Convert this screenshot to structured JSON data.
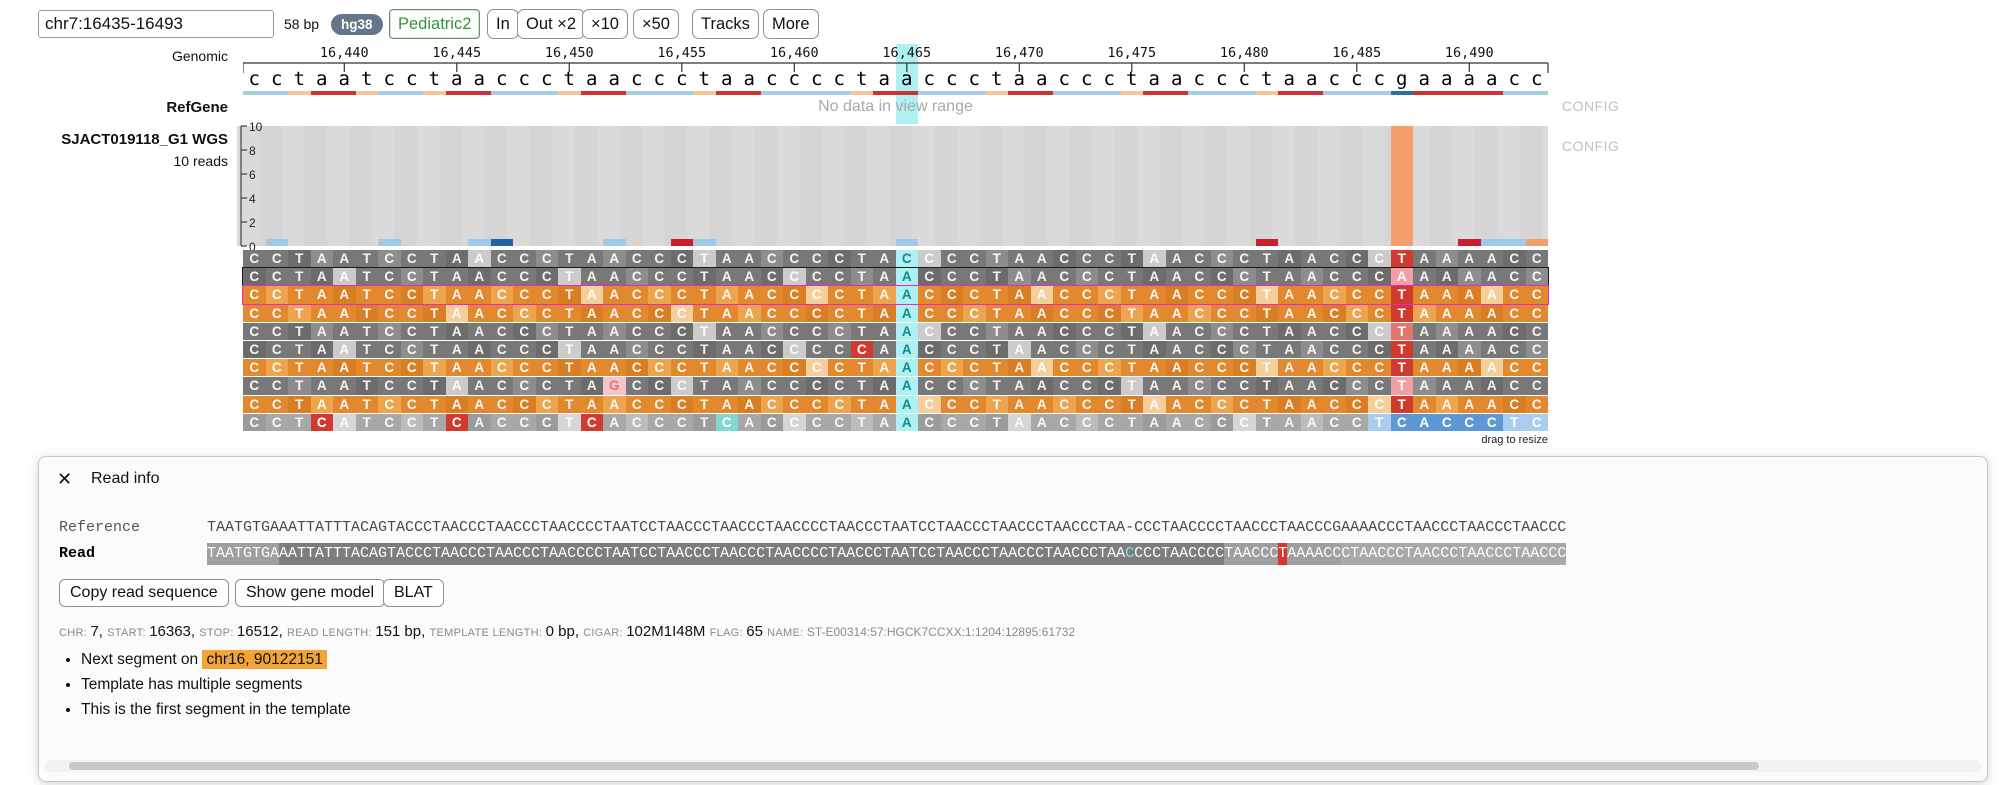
{
  "toolbar": {
    "position_input": "chr7:16435-16493",
    "span_label": "58 bp",
    "genome_badge": "hg38",
    "dataset_button": "Pediatric2",
    "zoom_in": "In",
    "zoom_out_2": "Out ×2",
    "zoom_out_10": "×10",
    "zoom_out_50": "×50",
    "tracks_button": "Tracks",
    "more_button": "More"
  },
  "ruler": {
    "track_label": "Genomic",
    "tick_labels": [
      "16,440",
      "16,445",
      "16,450",
      "16,455",
      "16,460",
      "16,465",
      "16,470",
      "16,475",
      "16,480",
      "16,485",
      "16,490"
    ],
    "start_coord": 16436
  },
  "reference": {
    "sequence": "cctaatcctaaccctaaccctaacccctaaccctaaccctaaccctaacccgaaaacc",
    "highlight_index": 29,
    "base_colors": {
      "a": "#cb3335",
      "c": "#a6cee3",
      "t": "#f8c49a",
      "g": "#2f6da4"
    },
    "highlight_color": "#aff0f2"
  },
  "refgene": {
    "track_label": "RefGene",
    "message": "No data in view range",
    "config_label": "CONFIG"
  },
  "bam": {
    "track_label": "SJACT019118_G1 WGS",
    "reads_label": "10 reads",
    "config_label": "CONFIG",
    "drag_label": "drag to resize",
    "y_ticks": [
      10,
      8,
      6,
      4,
      2,
      0
    ],
    "insertion_column": 51,
    "insertion_bar_color": "#f49e6d",
    "allele_marks": [
      {
        "col": 1,
        "color": "#9ec9e8",
        "span": 1
      },
      {
        "col": 6,
        "color": "#9ec9e8",
        "span": 1
      },
      {
        "col": 10,
        "color": "#9ec9e8",
        "span": 1
      },
      {
        "col": 11,
        "color": "#1f63a8",
        "span": 1
      },
      {
        "col": 16,
        "color": "#9ec9e8",
        "span": 1
      },
      {
        "col": 19,
        "color": "#cc1f2e",
        "span": 1
      },
      {
        "col": 20,
        "color": "#9ec9e8",
        "span": 1
      },
      {
        "col": 29,
        "color": "#9ec9e8",
        "span": 1
      },
      {
        "col": 45,
        "color": "#cc1f2e",
        "span": 1
      },
      {
        "col": 54,
        "color": "#cc1f2e",
        "span": 1
      },
      {
        "col": 55,
        "color": "#9ec9e8",
        "span": 2
      },
      {
        "col": 57,
        "color": "#f49e6d",
        "span": 1
      }
    ],
    "rows": [
      {
        "strand": "gray",
        "outline": null,
        "mismatches": [
          {
            "col": 29,
            "base": "C",
            "style": "hl"
          },
          {
            "col": 51,
            "base": "T",
            "style": "red"
          }
        ]
      },
      {
        "strand": "gray",
        "outline": "black",
        "mismatches": [
          {
            "col": 29,
            "base": "A",
            "style": "hl"
          },
          {
            "col": 51,
            "base": "A",
            "style": "pink"
          }
        ]
      },
      {
        "strand": "orange",
        "outline": "magenta",
        "mismatches": [
          {
            "col": 29,
            "base": "A",
            "style": "hl"
          },
          {
            "col": 51,
            "base": "T",
            "style": "red"
          }
        ]
      },
      {
        "strand": "orange",
        "outline": null,
        "mismatches": [
          {
            "col": 29,
            "base": "A",
            "style": "hl"
          },
          {
            "col": 51,
            "base": "T",
            "style": "red"
          }
        ]
      },
      {
        "strand": "gray",
        "outline": null,
        "mismatches": [
          {
            "col": 29,
            "base": "A",
            "style": "hl"
          },
          {
            "col": 51,
            "base": "T",
            "style": "softred"
          }
        ]
      },
      {
        "strand": "gray",
        "outline": null,
        "mismatches": [
          {
            "col": 27,
            "base": "C",
            "style": "red"
          },
          {
            "col": 29,
            "base": "A",
            "style": "hl"
          },
          {
            "col": 51,
            "base": "T",
            "style": "red"
          }
        ]
      },
      {
        "strand": "orange",
        "outline": null,
        "mismatches": [
          {
            "col": 29,
            "base": "A",
            "style": "hl"
          },
          {
            "col": 51,
            "base": "T",
            "style": "red"
          }
        ]
      },
      {
        "strand": "gray",
        "outline": null,
        "mismatches": [
          {
            "col": 16,
            "base": "G",
            "style": "palepink"
          },
          {
            "col": 29,
            "base": "A",
            "style": "hl"
          },
          {
            "col": 51,
            "base": "T",
            "style": "pink"
          }
        ]
      },
      {
        "strand": "orange",
        "outline": null,
        "mismatches": [
          {
            "col": 29,
            "base": "A",
            "style": "hl"
          },
          {
            "col": 51,
            "base": "T",
            "style": "red"
          }
        ]
      },
      {
        "strand": "palegray",
        "outline": null,
        "mismatches": [
          {
            "col": 3,
            "base": "C",
            "style": "red"
          },
          {
            "col": 9,
            "base": "C",
            "style": "red"
          },
          {
            "col": 15,
            "base": "C",
            "style": "red"
          },
          {
            "col": 21,
            "base": "C",
            "style": "teal"
          },
          {
            "col": 29,
            "base": "A",
            "style": "hl"
          },
          {
            "col": 50,
            "base": "T",
            "style": "lightblue"
          },
          {
            "col": 51,
            "base": "C",
            "style": "blue"
          },
          {
            "col": 52,
            "base": "A",
            "style": "blue"
          },
          {
            "col": 53,
            "base": "C",
            "style": "blue"
          },
          {
            "col": 54,
            "base": "C",
            "style": "blue"
          },
          {
            "col": 55,
            "base": "C",
            "style": "blue"
          },
          {
            "col": 56,
            "base": "T",
            "style": "lightblue"
          },
          {
            "col": 57,
            "base": "C",
            "style": "lightblue"
          }
        ]
      }
    ]
  },
  "read_info": {
    "close_icon": "✕",
    "title": "Read info",
    "reference_label": "Reference",
    "read_label": "Read",
    "reference_sequence": "TAATGTGAAATTATTTACAGTACCCTAACCCTAACCCTAACCCCTAATCCTAACCCTAACCCTAACCCCTAACCCTAATCCTAACCCTAACCCTAACCCTAA-CCCTAACCCCTAACCCTAACCCGAAAACCCTAACCCTAACCCTAACCC",
    "read_segments": [
      {
        "text": "TAATGTGA",
        "style": "dim"
      },
      {
        "text": "AATTATTTACAGTACCCTAACCCTAACCCTAACCCCTAATCCTAACCCTAACCCTAACCCCTAACCCTAATCCTAACCCTAACCCTAACCCTAA",
        "style": ""
      },
      {
        "text": "C",
        "style": "ins"
      },
      {
        "text": "CCCTAACCCC",
        "style": ""
      },
      {
        "text": "TAACCC",
        "style": "dim"
      },
      {
        "text": "T",
        "style": "mm"
      },
      {
        "text": "AAAACC",
        "style": "dim"
      },
      {
        "text": "CTAACCCTAACCCTAACCCTAACCC",
        "style": "dim2"
      }
    ],
    "buttons": [
      "Copy read sequence",
      "Show gene model",
      "BLAT"
    ],
    "fields": [
      {
        "label": "chr:",
        "value": "7",
        "sep": ", "
      },
      {
        "label": "start:",
        "value": "16363",
        "sep": ", "
      },
      {
        "label": "stop:",
        "value": "16512",
        "sep": ", "
      },
      {
        "label": "read length:",
        "value": "151 bp",
        "sep": ", "
      },
      {
        "label": "template length:",
        "value": "0 bp",
        "sep": ", "
      },
      {
        "label": "cigar:",
        "value": "102M1I48M",
        "sep": " "
      },
      {
        "label": "flag:",
        "value": "65",
        "sep": " "
      },
      {
        "label": "name:",
        "value": "ST-E00314:57:HGCK7CCXX:1:1204:12895:61732",
        "sep": "",
        "small": true
      }
    ],
    "notes": [
      {
        "prefix": "Next segment on ",
        "highlight": "chr16, 90122151"
      },
      {
        "text": "Template has multiple segments"
      },
      {
        "text": "This is the first segment in the template"
      }
    ]
  }
}
